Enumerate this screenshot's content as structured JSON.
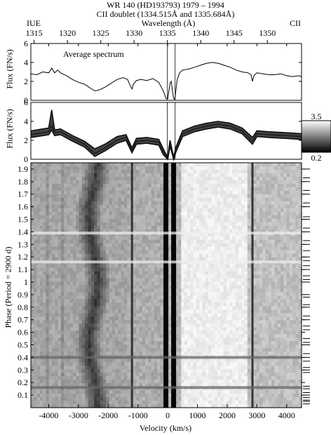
{
  "header": {
    "title_line1": "WR 140 (HD193793)  1979 – 1994",
    "title_line2": "CII doublet (1334.515Å and 1335.684Å)",
    "instrument": "IUE",
    "wavelength_label": "Wavelength (Å)",
    "ion": "CII"
  },
  "chart_data": [
    {
      "type": "line",
      "title": "Average spectrum",
      "xlabel": "Velocity (km/s)",
      "ylabel": "Flux (FN/s)",
      "xlim": [
        -4600,
        4500
      ],
      "ylim": [
        0,
        6
      ],
      "yticks": [
        0,
        2,
        4,
        6
      ],
      "series": [
        {
          "x": [
            -4600,
            -4400,
            -4200,
            -4000,
            -3900,
            -3800,
            -3700,
            -3600,
            -3400,
            -3200,
            -3000,
            -2800,
            -2600,
            -2450,
            -2300,
            -2100,
            -1900,
            -1700,
            -1500,
            -1350,
            -1250,
            -1200,
            -1150,
            -1050,
            -900,
            -700,
            -500,
            -300,
            -150,
            -60,
            0,
            40,
            80,
            120,
            160,
            200,
            240,
            280,
            320,
            400,
            500,
            700,
            900,
            1100,
            1300,
            1500,
            1700,
            1900,
            2100,
            2300,
            2500,
            2700,
            2800,
            2850,
            2900,
            3000,
            3200,
            3400,
            3600,
            3800,
            4000,
            4200,
            4400,
            4500
          ],
          "y": [
            2.8,
            2.7,
            3.0,
            2.9,
            3.4,
            2.9,
            3.2,
            2.9,
            2.6,
            2.2,
            1.9,
            1.7,
            1.3,
            1.0,
            1.1,
            1.4,
            1.8,
            2.2,
            2.4,
            2.2,
            1.5,
            1.2,
            1.7,
            2.1,
            2.2,
            2.1,
            2.3,
            1.9,
            1.0,
            0.2,
            0.15,
            1.0,
            1.8,
            2.0,
            1.0,
            0.2,
            0.1,
            1.2,
            2.2,
            2.9,
            3.2,
            3.3,
            3.5,
            3.7,
            3.9,
            4.0,
            3.9,
            3.7,
            3.5,
            3.2,
            3.0,
            2.9,
            2.7,
            2.0,
            2.6,
            2.9,
            2.8,
            2.7,
            2.7,
            2.8,
            2.6,
            2.5,
            2.6,
            2.5
          ]
        }
      ]
    },
    {
      "type": "line",
      "title": "",
      "xlabel": "Velocity (km/s)",
      "ylabel": "Flux (FN/s)",
      "xlim": [
        -4600,
        4500
      ],
      "ylim": [
        0,
        6
      ],
      "yticks": [
        0,
        2,
        4,
        6
      ],
      "note_overplotted_spectra": true,
      "series": [
        {
          "x": [
            -4600,
            -4200,
            -4000,
            -3900,
            -3800,
            -3600,
            -3200,
            -2800,
            -2450,
            -2100,
            -1700,
            -1400,
            -1200,
            -1050,
            -700,
            -300,
            -150,
            0,
            80,
            200,
            280,
            500,
            900,
            1300,
            1700,
            2100,
            2500,
            2850,
            3000,
            3400,
            4000,
            4500
          ],
          "y": [
            3.0,
            3.2,
            3.3,
            5.2,
            3.1,
            3.2,
            2.5,
            1.9,
            1.1,
            1.6,
            2.4,
            2.6,
            1.2,
            2.2,
            2.3,
            2.1,
            1.1,
            0.2,
            2.0,
            0.2,
            1.3,
            3.0,
            3.5,
            3.8,
            4.0,
            3.8,
            3.3,
            2.3,
            3.0,
            2.9,
            2.8,
            2.7
          ]
        },
        {
          "x": [
            -4600,
            -4200,
            -4000,
            -3900,
            -3800,
            -3600,
            -3200,
            -2800,
            -2450,
            -2100,
            -1700,
            -1400,
            -1200,
            -1050,
            -700,
            -300,
            -150,
            0,
            80,
            200,
            280,
            500,
            900,
            1300,
            1700,
            2100,
            2500,
            2850,
            3000,
            3400,
            4000,
            4500
          ],
          "y": [
            2.6,
            2.8,
            2.9,
            3.6,
            2.8,
            2.9,
            2.2,
            1.6,
            0.6,
            1.2,
            2.0,
            2.3,
            0.9,
            1.9,
            2.0,
            1.8,
            0.8,
            0.05,
            1.7,
            0.05,
            1.0,
            2.7,
            3.2,
            3.5,
            3.7,
            3.5,
            3.0,
            1.9,
            2.7,
            2.6,
            2.5,
            2.4
          ]
        },
        {
          "x": [
            -4600,
            -4200,
            -4000,
            -3900,
            -3800,
            -3600,
            -3200,
            -2800,
            -2450,
            -2100,
            -1700,
            -1400,
            -1200,
            -1050,
            -700,
            -300,
            -150,
            0,
            80,
            200,
            280,
            500,
            900,
            1300,
            1700,
            2100,
            2500,
            2850,
            3000,
            3400,
            4000,
            4500
          ],
          "y": [
            2.3,
            2.5,
            2.6,
            3.1,
            2.5,
            2.6,
            1.9,
            1.3,
            0.3,
            0.9,
            1.7,
            2.0,
            0.7,
            1.6,
            1.7,
            1.5,
            0.5,
            0.0,
            1.4,
            0.0,
            0.8,
            2.4,
            2.9,
            3.2,
            3.4,
            3.2,
            2.7,
            1.6,
            2.4,
            2.3,
            2.2,
            2.1
          ]
        }
      ]
    },
    {
      "type": "heatmap",
      "xlabel": "Velocity (km/s)",
      "ylabel": "Phase (Period = 2900 d)",
      "xlim": [
        -4600,
        4500
      ],
      "xticks": [
        -4000,
        -3000,
        -2000,
        -1000,
        0,
        1000,
        2000,
        3000,
        4000
      ],
      "ylim": [
        0.0,
        1.95
      ],
      "yticks": [
        0.1,
        0.2,
        0.3,
        0.4,
        0.5,
        0.6,
        0.7,
        0.8,
        0.9,
        1,
        1.1,
        1.2,
        1.3,
        1.4,
        1.5,
        1.6,
        1.7,
        1.8,
        1.9
      ],
      "colorbar": {
        "max": 3.5,
        "min": 0.2
      },
      "dark_features_kms": [
        -1200,
        -60,
        200,
        2850
      ],
      "moving_absorption_kms": {
        "phase_0.05": -2350,
        "phase_1.0": -2500,
        "phase_1.9": -2200
      }
    }
  ],
  "wavelength_ticks": [
    {
      "label": "1315",
      "v": -4490
    },
    {
      "label": "1320",
      "v": -3370
    },
    {
      "label": "1325",
      "v": -2250
    },
    {
      "label": "1330",
      "v": -1130
    },
    {
      "label": "1335",
      "v": -10
    },
    {
      "label": "1340",
      "v": 1110
    },
    {
      "label": "1345",
      "v": 2230
    },
    {
      "label": "1350",
      "v": 3350
    }
  ],
  "observation_phases": [
    0.03,
    0.05,
    0.06,
    0.08,
    0.1,
    0.12,
    0.15,
    0.17,
    0.28,
    0.3,
    0.32,
    0.37,
    0.4,
    0.43,
    0.5,
    0.52,
    0.55,
    0.62,
    0.65,
    0.7,
    0.73,
    0.8,
    0.82,
    0.88,
    0.9,
    1.0,
    1.02,
    1.05,
    1.1,
    1.13,
    1.17,
    1.2,
    1.25,
    1.3,
    1.33,
    1.4,
    1.43,
    1.5,
    1.52,
    1.6,
    1.63,
    1.7,
    1.73,
    1.8,
    1.83,
    1.9
  ]
}
